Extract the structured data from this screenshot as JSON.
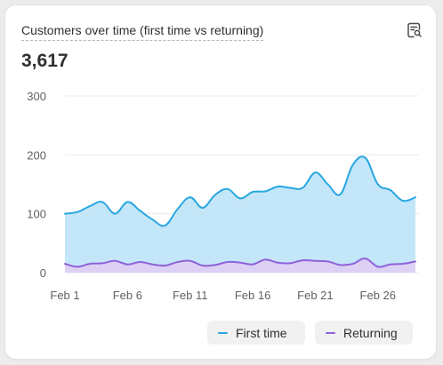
{
  "card": {
    "title": "Customers over time (first time vs returning)",
    "total": "3,617",
    "insight_icon": "search-document-icon"
  },
  "legend": {
    "first_time": "First time",
    "returning": "Returning"
  },
  "colors": {
    "first_time_line": "#29a7e1",
    "first_time_fill": "#c4e6f9",
    "returning_line": "#8f62d9",
    "returning_fill": "#ddd0f5",
    "grid": "#ebebeb",
    "axis_text": "#616161"
  },
  "chart_data": {
    "type": "area",
    "title": "Customers over time (first time vs returning)",
    "xlabel": "",
    "ylabel": "",
    "ylim": [
      0,
      300
    ],
    "yticks": [
      0,
      100,
      200,
      300
    ],
    "grid": true,
    "legend_position": "bottom-right",
    "x": [
      "Feb 1",
      "Feb 2",
      "Feb 3",
      "Feb 4",
      "Feb 5",
      "Feb 6",
      "Feb 7",
      "Feb 8",
      "Feb 9",
      "Feb 10",
      "Feb 11",
      "Feb 12",
      "Feb 13",
      "Feb 14",
      "Feb 15",
      "Feb 16",
      "Feb 17",
      "Feb 18",
      "Feb 19",
      "Feb 20",
      "Feb 21",
      "Feb 22",
      "Feb 23",
      "Feb 24",
      "Feb 25",
      "Feb 26",
      "Feb 27",
      "Feb 28",
      "Feb 29"
    ],
    "xtick_labels": [
      "Feb 1",
      "Feb 6",
      "Feb 11",
      "Feb 16",
      "Feb 21",
      "Feb 26"
    ],
    "xtick_indices": [
      0,
      5,
      10,
      15,
      20,
      25
    ],
    "series": [
      {
        "name": "First time",
        "values": [
          100,
          103,
          113,
          120,
          100,
          120,
          105,
          90,
          80,
          108,
          128,
          110,
          132,
          142,
          126,
          137,
          138,
          146,
          144,
          144,
          170,
          150,
          133,
          183,
          195,
          150,
          140,
          122,
          128
        ]
      },
      {
        "name": "Returning",
        "values": [
          15,
          10,
          15,
          16,
          20,
          14,
          18,
          14,
          12,
          18,
          20,
          12,
          13,
          18,
          17,
          14,
          22,
          17,
          16,
          21,
          20,
          19,
          13,
          15,
          24,
          10,
          14,
          15,
          19
        ]
      }
    ]
  }
}
